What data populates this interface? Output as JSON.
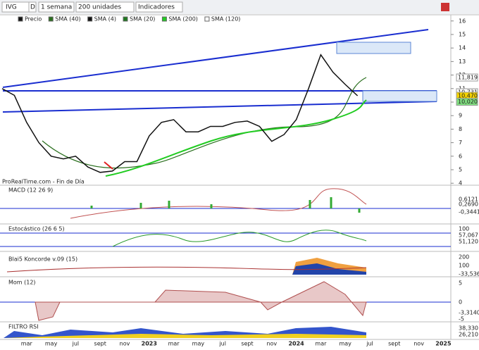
{
  "toolbar": {
    "symbol": "IVG",
    "period_code": "D",
    "interval": "1 semana",
    "units": "200 unidades",
    "indicators": "Indicadores"
  },
  "legend": [
    "Precio",
    "SMA (40)",
    "SMA (4)",
    "SMA (20)",
    "SMA (200)",
    "SMA (120)"
  ],
  "source": "ProRealTime.com - Fin de Día",
  "chart_data": {
    "type": "line",
    "categories": [
      null,
      null,
      "mar",
      null,
      "may",
      null,
      "jul",
      null,
      "sept",
      null,
      "nov",
      null,
      "2023",
      null,
      "mar",
      null,
      "may",
      null,
      "jul",
      null,
      "sept",
      null,
      "nov",
      null,
      "2024",
      null,
      "mar",
      null,
      "may",
      null,
      "jul",
      null,
      "sept",
      null,
      "nov",
      null,
      "2025"
    ],
    "series": [
      {
        "name": "Precio",
        "color": "#111111",
        "values": [
          11,
          10.5,
          8.5,
          7,
          6,
          5.8,
          6,
          5.2,
          4.8,
          4.9,
          5.6,
          5.6,
          7.5,
          8.5,
          8.7,
          7.8,
          7.8,
          8.2,
          8.2,
          8.5,
          8.6,
          8.2,
          7.1,
          7.6,
          8.7,
          11,
          13.5,
          12.2,
          11.3,
          10.47,
          null,
          null,
          null,
          null,
          null,
          null,
          null
        ]
      }
    ],
    "ylim": [
      3.75,
      16.3
    ],
    "yticks": [
      4,
      5,
      6,
      7,
      8,
      9,
      10,
      11,
      12,
      13,
      14,
      15,
      16
    ],
    "price_labels": [
      {
        "value": 11.819,
        "label": "11,819"
      },
      {
        "value": 10.731,
        "label": "10,731"
      },
      {
        "value": 10.47,
        "label": "10,470"
      },
      {
        "value": 10.02,
        "label": "10,020"
      }
    ]
  },
  "panels": {
    "macd": {
      "title": "MACD (12 26 9)",
      "labels": [
        "0,6121",
        "0,2690",
        "-0,3441"
      ]
    },
    "stochastic": {
      "title": "Estocástico (26 6 5)",
      "labels": [
        "100",
        "57,067",
        "51,120"
      ]
    },
    "koncorde": {
      "title": "Blai5 Koncorde v.09 (15)",
      "labels": [
        "200",
        "100",
        "-33,536"
      ]
    },
    "momentum": {
      "title": "Mom (12)",
      "labels": [
        "5",
        "0",
        "-3,3140",
        "-5"
      ]
    },
    "rsi": {
      "title": "FILTRO RSI",
      "labels": [
        "38,330",
        "26,210"
      ]
    }
  }
}
